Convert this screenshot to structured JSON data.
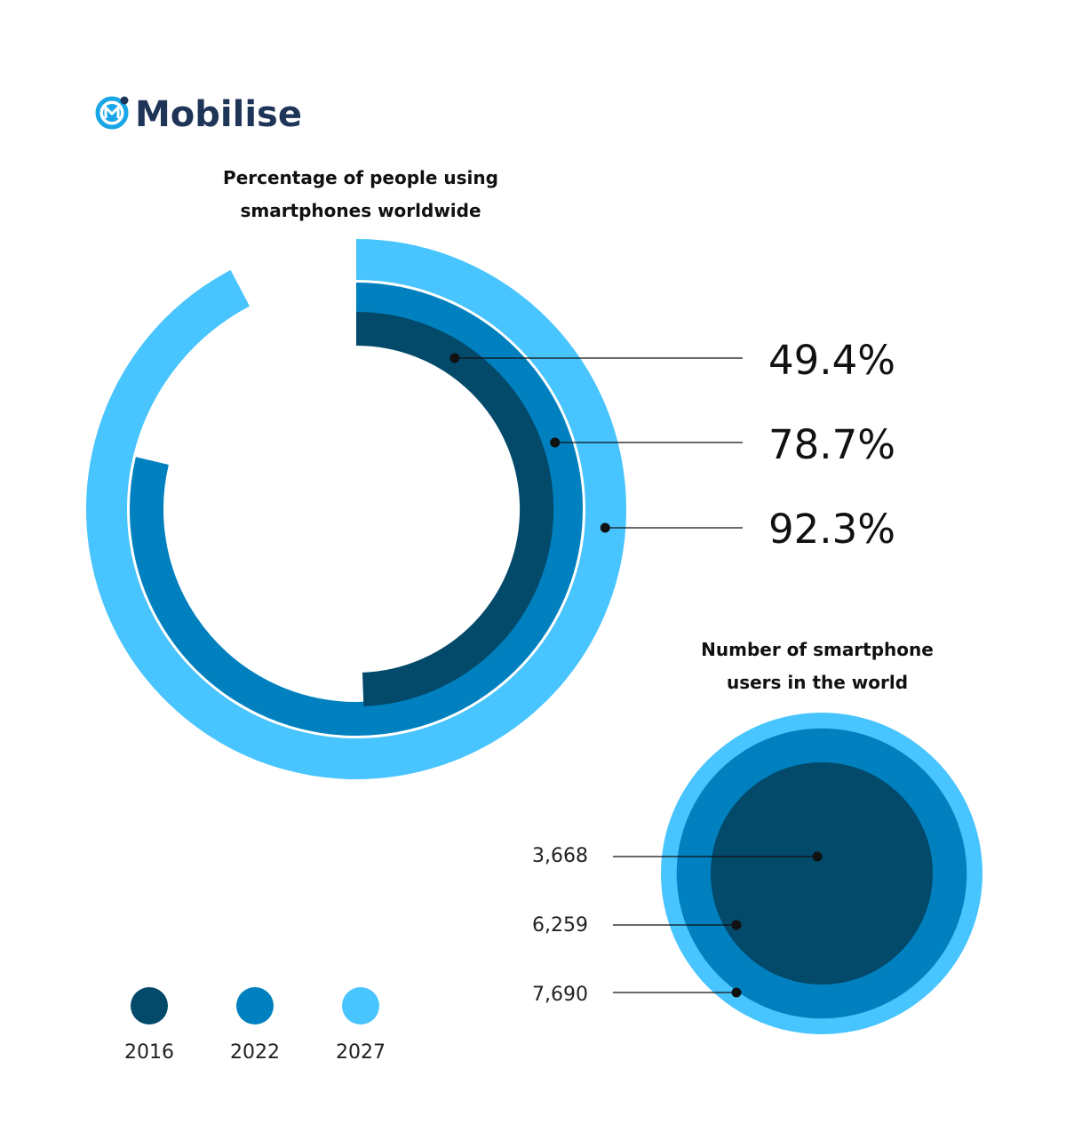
{
  "brand": {
    "name": "Mobilise",
    "logo_icon": "mobilise-logo-icon",
    "color": "#1f3558"
  },
  "colors": {
    "2016": "#02496a",
    "2022": "#0080bf",
    "2027": "#48c4fe",
    "pointer": "#111111"
  },
  "chart_data": [
    {
      "type": "radial-bar",
      "title_lines": [
        "Percentage of people using",
        "smartphones worldwide"
      ],
      "unit": "%",
      "categories": [
        "2016",
        "2022",
        "2027"
      ],
      "values": [
        49.4,
        78.7,
        92.3
      ],
      "labels": [
        "49.4%",
        "78.7%",
        "92.3%"
      ],
      "max": 100
    },
    {
      "type": "nested-circles",
      "title_lines": [
        "Number of smartphone",
        "users in the world"
      ],
      "categories": [
        "2016",
        "2022",
        "2027"
      ],
      "values": [
        3668,
        6259,
        7690
      ],
      "labels": [
        "3,668",
        "6,259",
        "7,690"
      ]
    }
  ],
  "legend": [
    {
      "label": "2016",
      "color": "#02496a"
    },
    {
      "label": "2022",
      "color": "#0080bf"
    },
    {
      "label": "2027",
      "color": "#48c4fe"
    }
  ]
}
